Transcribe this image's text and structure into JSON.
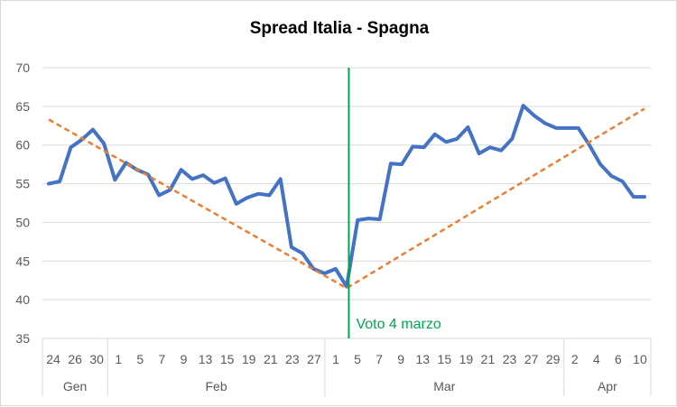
{
  "chart_data": {
    "type": "line",
    "title": "Spread Italia - Spagna",
    "ylim": [
      35,
      70
    ],
    "yticks": [
      35,
      40,
      45,
      50,
      55,
      60,
      65,
      70
    ],
    "grid": true,
    "x_tick_labels": [
      "24",
      "26",
      "30",
      "1",
      "5",
      "7",
      "9",
      "13",
      "15",
      "19",
      "21",
      "23",
      "27",
      "1",
      "5",
      "7",
      "9",
      "13",
      "15",
      "19",
      "21",
      "23",
      "27",
      "29",
      "2",
      "4",
      "6",
      "10"
    ],
    "months": [
      {
        "label": "Gen",
        "from": 0,
        "to": 6
      },
      {
        "label": "Feb",
        "from": 6,
        "to": 26
      },
      {
        "label": "Mar",
        "from": 26,
        "to": 49
      },
      {
        "label": "Apr",
        "from": 49,
        "to": 56
      }
    ],
    "series": [
      {
        "color": "#4472c4",
        "style": "solid",
        "values": [
          55.0,
          55.3,
          59.7,
          60.7,
          62.0,
          60.2,
          55.5,
          57.7,
          56.8,
          56.2,
          53.5,
          54.2,
          56.8,
          55.6,
          56.1,
          55.1,
          55.7,
          52.4,
          53.2,
          53.7,
          53.5,
          55.6,
          46.8,
          46.0,
          44.0,
          43.4,
          44.0,
          41.7,
          50.3,
          50.5,
          50.4,
          57.6,
          57.5,
          59.8,
          59.7,
          61.4,
          60.4,
          60.8,
          62.3,
          58.9,
          59.7,
          59.3,
          60.8,
          65.1,
          63.8,
          62.8,
          62.2,
          62.2,
          62.2,
          60.0,
          57.5,
          56.0,
          55.3,
          53.3,
          53.3
        ]
      },
      {
        "color": "#ed7d31",
        "style": "dashed",
        "values": [
          63.3,
          null,
          null,
          null,
          null,
          null,
          null,
          null,
          null,
          null,
          null,
          null,
          null,
          null,
          null,
          null,
          null,
          null,
          null,
          null,
          null,
          null,
          null,
          null,
          null,
          null,
          null,
          41.5,
          null,
          null,
          null,
          null,
          null,
          null,
          null,
          null,
          null,
          null,
          null,
          null,
          null,
          null,
          null,
          null,
          null,
          null,
          null,
          null,
          null,
          null,
          null,
          null,
          null,
          null,
          64.7
        ]
      }
    ],
    "event_line": {
      "x_index": 27.2,
      "label": "Voto 4 marzo",
      "color": "#00a550"
    }
  }
}
